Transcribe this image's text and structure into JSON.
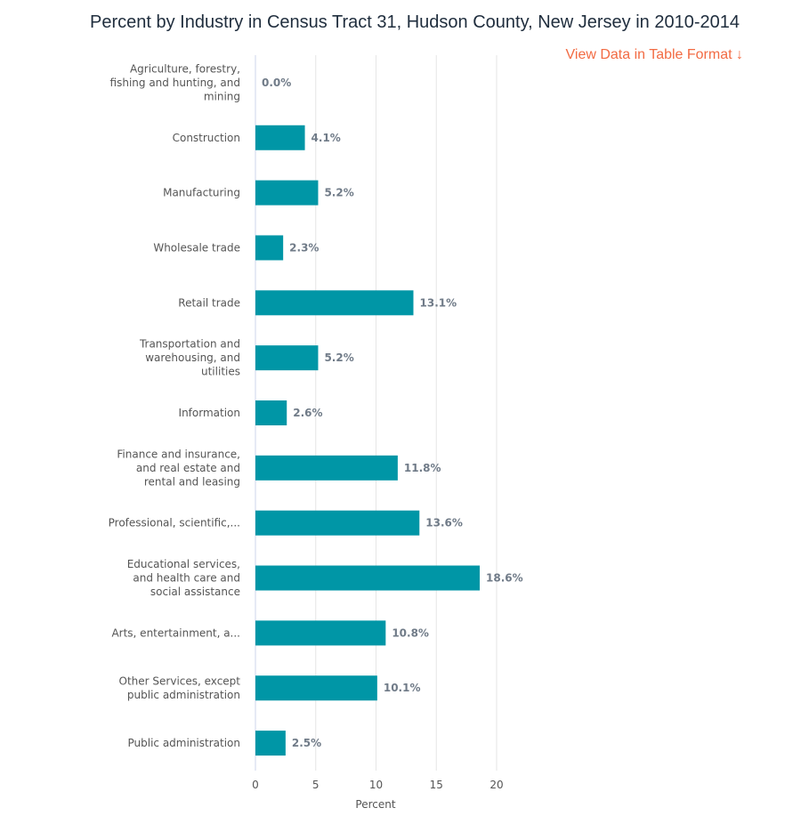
{
  "header": {
    "title": "Percent by Industry in Census Tract 31, Hudson County, New Jersey in 2010-2014",
    "table_link": "View Data in Table Format ↓"
  },
  "chart_data": {
    "type": "bar",
    "orientation": "horizontal",
    "title": "Percent by Industry in Census Tract 31, Hudson County, New Jersey in 2010-2014",
    "xlabel": "Percent",
    "ylabel": "",
    "xlim": [
      0,
      20
    ],
    "ticks": [
      0,
      5,
      10,
      15,
      20
    ],
    "grid": true,
    "color": "#0096a6",
    "categories": [
      [
        "Agriculture, forestry,",
        "fishing and hunting, and",
        "mining"
      ],
      [
        "Construction"
      ],
      [
        "Manufacturing"
      ],
      [
        "Wholesale trade"
      ],
      [
        "Retail trade"
      ],
      [
        "Transportation and",
        "warehousing, and",
        "utilities"
      ],
      [
        "Information"
      ],
      [
        "Finance and insurance,",
        "and real estate and",
        "rental and leasing"
      ],
      [
        "Professional, scientific,..."
      ],
      [
        "Educational services,",
        "and health care and",
        "social assistance"
      ],
      [
        "Arts, entertainment, a..."
      ],
      [
        "Other Services, except",
        "public administration"
      ],
      [
        "Public administration"
      ]
    ],
    "values": [
      0.0,
      4.1,
      5.2,
      2.3,
      13.1,
      5.2,
      2.6,
      11.8,
      13.6,
      18.6,
      10.8,
      10.1,
      2.5
    ],
    "value_labels": [
      "0.0%",
      "4.1%",
      "5.2%",
      "2.3%",
      "13.1%",
      "5.2%",
      "2.6%",
      "11.8%",
      "13.6%",
      "18.6%",
      "10.8%",
      "10.1%",
      "2.5%"
    ]
  }
}
